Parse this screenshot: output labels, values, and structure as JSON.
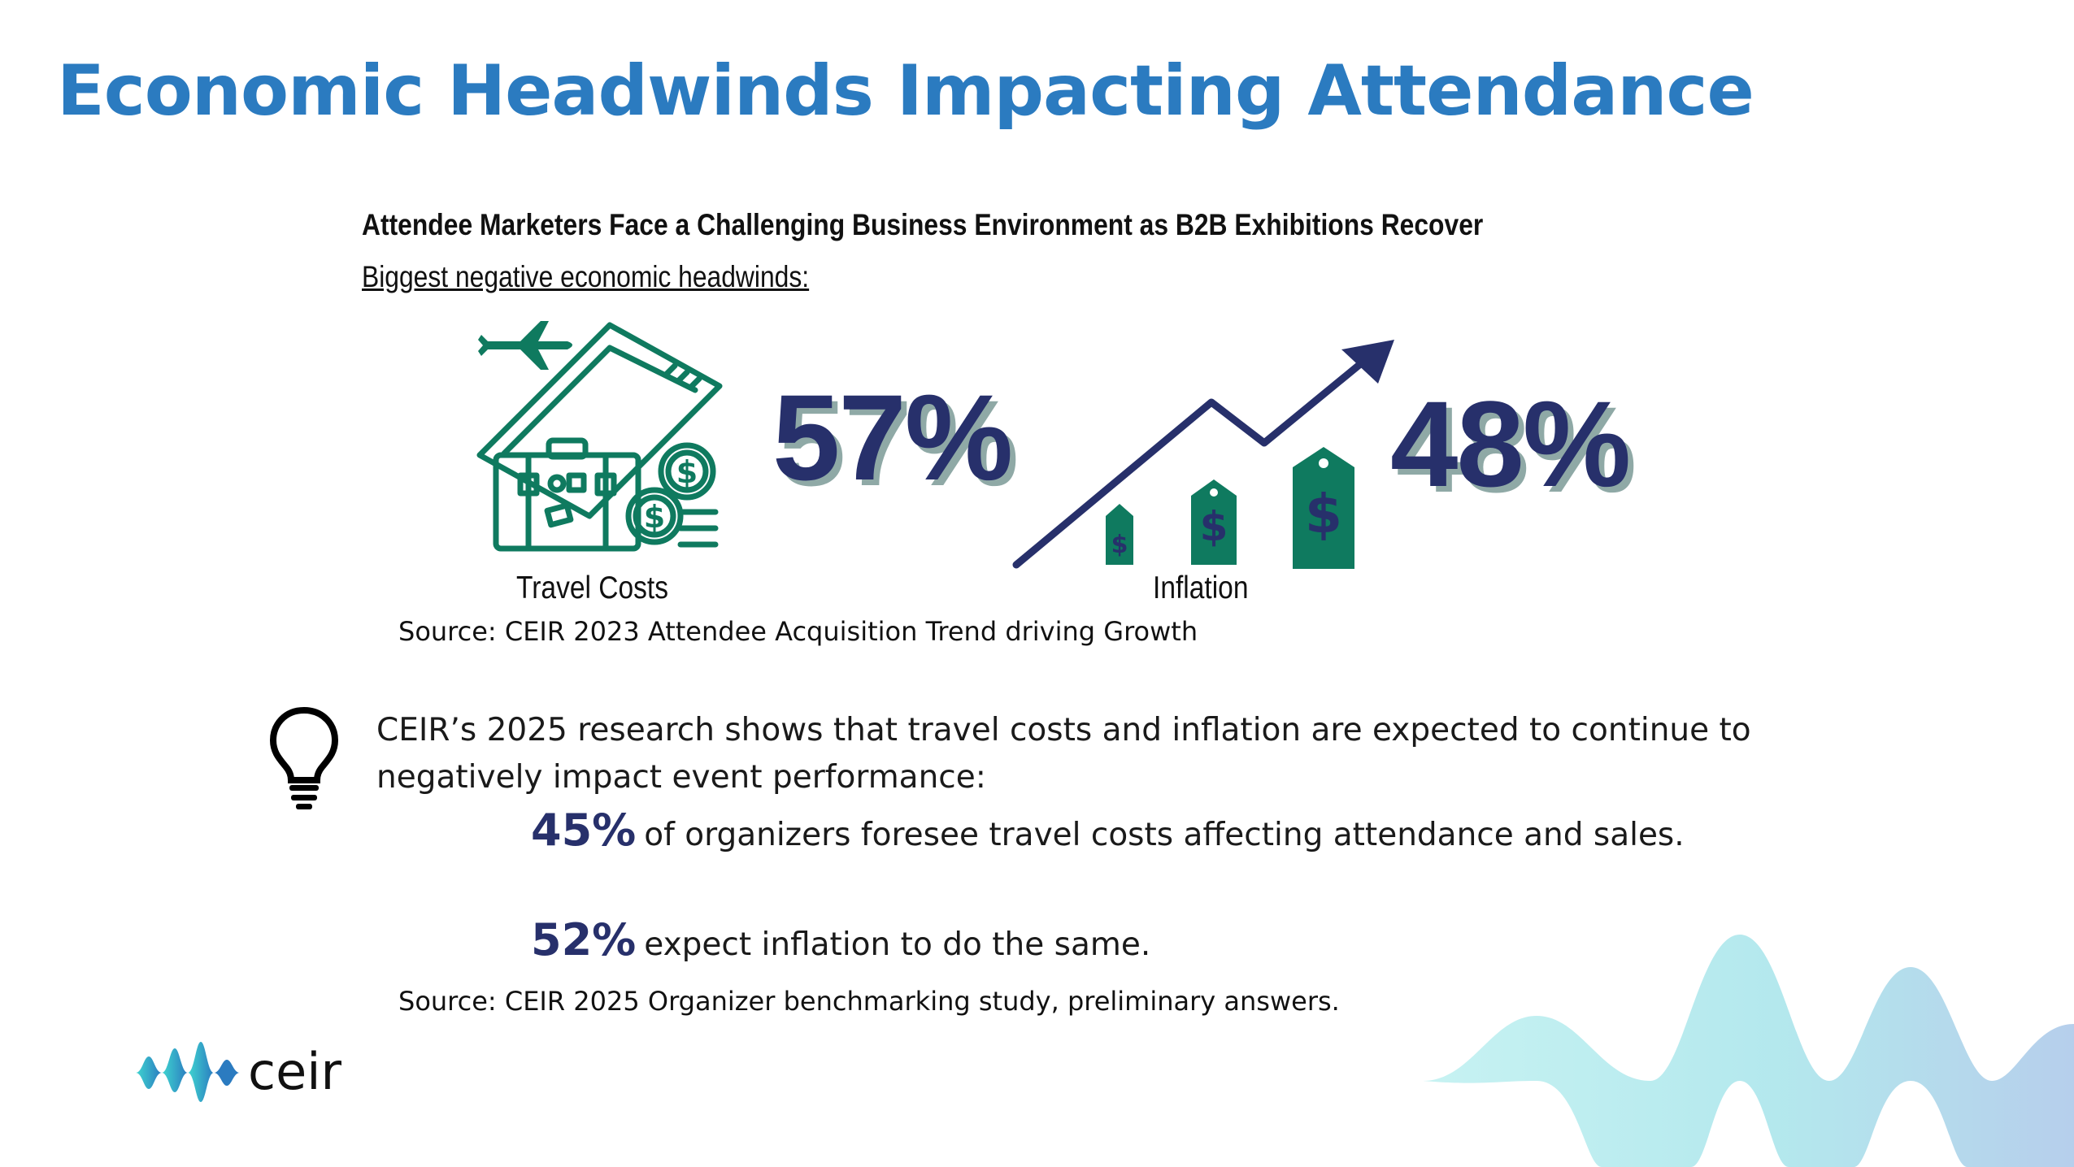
{
  "slide": {
    "title": "Economic Headwinds Impacting Attendance"
  },
  "infographic": {
    "heading": "Attendee Marketers Face a Challenging Business Environment as B2B Exhibitions Recover",
    "subheading": "Biggest negative economic headwinds:",
    "travel": {
      "label": "Travel Costs",
      "percent": "57%",
      "icon": "travel-suitcase-ticket-coins-icon"
    },
    "inflation": {
      "label": "Inflation",
      "percent": "48%",
      "icon": "rising-arrow-price-tags-icon"
    },
    "source": "Source: CEIR 2023 Attendee Acquisition Trend driving Growth"
  },
  "research": {
    "icon": "lightbulb-icon",
    "line1": "CEIR’s 2025 research shows that travel costs and inflation are expected to continue to",
    "line2": "negatively impact event performance:",
    "bullets": [
      {
        "stat": "45%",
        "text": "of organizers foresee travel costs affecting attendance and sales."
      },
      {
        "stat": "52%",
        "text": "expect inflation to do the same."
      }
    ],
    "source": "Source: CEIR 2025 Organizer benchmarking study, preliminary answers."
  },
  "logo": {
    "text": "ceir",
    "icon": "ceir-waveform-logo-icon"
  },
  "colors": {
    "title": "#2b7bc0",
    "stat": "#27306b",
    "icon_green": "#0f7a5f",
    "wave_cyan": "#8fe3e8",
    "wave_blue": "#9ec3e6"
  }
}
